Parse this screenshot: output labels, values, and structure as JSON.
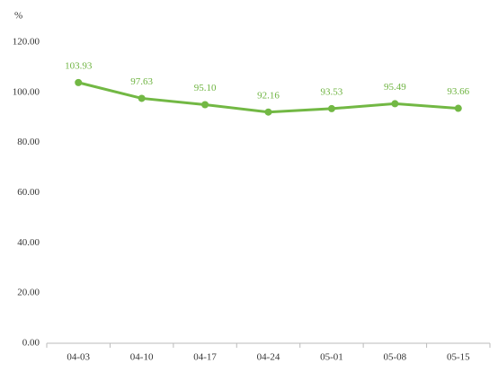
{
  "chart_data": {
    "type": "line",
    "y_label": "%",
    "categories": [
      "04-03",
      "04-10",
      "04-17",
      "04-24",
      "05-01",
      "05-08",
      "05-15"
    ],
    "series": [
      {
        "name": "series",
        "color": "#72b844",
        "values": [
          103.93,
          97.63,
          95.1,
          92.16,
          93.53,
          95.49,
          93.66
        ],
        "value_labels": [
          "103.93",
          "97.63",
          "95.10",
          "92.16",
          "93.53",
          "95.49",
          "93.66"
        ]
      }
    ],
    "ylim": [
      0,
      120
    ],
    "yticks": [
      {
        "value": 0,
        "label": "0.00"
      },
      {
        "value": 20,
        "label": "20.00"
      },
      {
        "value": 40,
        "label": "40.00"
      },
      {
        "value": 60,
        "label": "60.00"
      },
      {
        "value": 80,
        "label": "80.00"
      },
      {
        "value": 100,
        "label": "100.00"
      },
      {
        "value": 120,
        "label": "120.00"
      }
    ],
    "grid": false
  }
}
